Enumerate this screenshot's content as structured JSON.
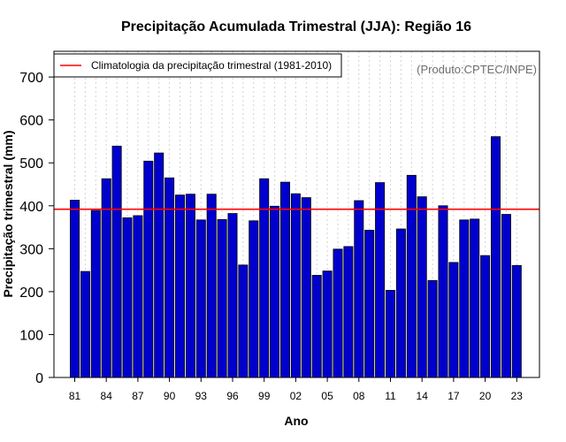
{
  "chart_data": {
    "type": "bar",
    "title": "Precipitação Acumulada Trimestral (JJA): Região 16",
    "xlabel": "Ano",
    "ylabel": "Precipitação trimestral (mm)",
    "credit": "(Produto:CPTEC/INPE)",
    "legend": {
      "label": "Climatologia da precipitação trimestral (1981-2010)",
      "placement": "top-left"
    },
    "climatology": 392,
    "ylim": [
      0,
      760
    ],
    "yticks": [
      0,
      100,
      200,
      300,
      400,
      500,
      600,
      700
    ],
    "grid": "vertical-dotted",
    "categories": [
      "1981",
      "1982",
      "1983",
      "1984",
      "1985",
      "1986",
      "1987",
      "1988",
      "1989",
      "1990",
      "1991",
      "1992",
      "1993",
      "1994",
      "1995",
      "1996",
      "1997",
      "1998",
      "1999",
      "2000",
      "2001",
      "2002",
      "2003",
      "2004",
      "2005",
      "2006",
      "2007",
      "2008",
      "2009",
      "2010",
      "2011",
      "2012",
      "2013",
      "2014",
      "2015",
      "2016",
      "2017",
      "2018",
      "2019",
      "2020",
      "2021",
      "2022",
      "2023"
    ],
    "xtick_labels": [
      "81",
      "84",
      "87",
      "90",
      "93",
      "96",
      "99",
      "02",
      "05",
      "08",
      "11",
      "14",
      "17",
      "20",
      "23"
    ],
    "values": [
      413,
      247,
      389,
      463,
      539,
      372,
      377,
      504,
      523,
      465,
      425,
      427,
      367,
      427,
      368,
      382,
      262,
      365,
      463,
      399,
      455,
      428,
      419,
      238,
      248,
      299,
      305,
      412,
      343,
      454,
      203,
      346,
      471,
      421,
      226,
      400,
      268,
      367,
      369,
      284,
      561,
      380,
      261
    ]
  },
  "colors": {
    "bar_fill": "#0000cd",
    "bar_stroke": "#000000",
    "climatology_line": "#ff0000",
    "grid": "#d3d3d3"
  }
}
